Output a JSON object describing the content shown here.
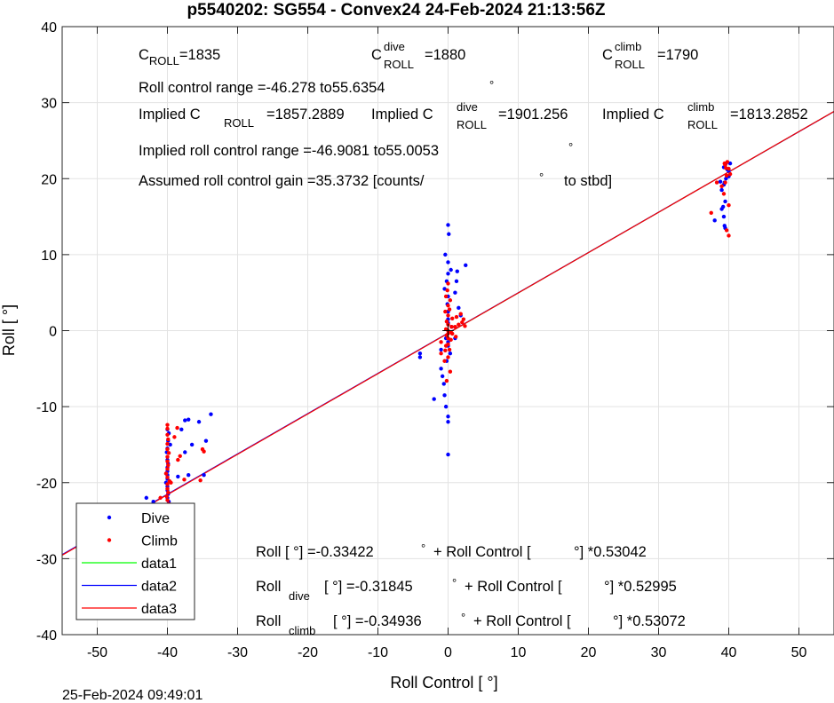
{
  "chart_data": {
    "type": "scatter",
    "title": "p5540202: SG554 - Convex24 24-Feb-2024 21:13:56Z",
    "xlabel": "Roll Control [   °]",
    "ylabel": "Roll [  °]",
    "xlim": [
      -55,
      55
    ],
    "ylim": [
      -40,
      40
    ],
    "xticks": [
      -50,
      -40,
      -30,
      -20,
      -10,
      0,
      10,
      20,
      30,
      40,
      50
    ],
    "yticks": [
      -40,
      -30,
      -20,
      -10,
      0,
      10,
      20,
      30,
      40
    ],
    "grid": true,
    "legend_position": "bottom-left",
    "timestamp": "25-Feb-2024 09:49:01",
    "series": [
      {
        "name": "Dive",
        "kind": "points",
        "color": "#0000ff",
        "points": [
          [
            -40,
            -24.5
          ],
          [
            -40,
            -24
          ],
          [
            -40,
            -23.5
          ],
          [
            -40,
            -23
          ],
          [
            -39.8,
            -22.5
          ],
          [
            -40,
            -22
          ],
          [
            -39.9,
            -21.5
          ],
          [
            -40,
            -21
          ],
          [
            -40,
            -20.5
          ],
          [
            -40.2,
            -20
          ],
          [
            -40,
            -19.5
          ],
          [
            -40,
            -19
          ],
          [
            -40,
            -18.5
          ],
          [
            -40,
            -18
          ],
          [
            -39.9,
            -17.5
          ],
          [
            -40,
            -17
          ],
          [
            -40.1,
            -16
          ],
          [
            -40,
            -15.5
          ],
          [
            -39.9,
            -14.5
          ],
          [
            -39.8,
            -13.5
          ],
          [
            -40,
            -13
          ],
          [
            -39.6,
            -15
          ],
          [
            -38,
            -13
          ],
          [
            -37.5,
            -11.8
          ],
          [
            -37,
            -11.7
          ],
          [
            -36.5,
            -15
          ],
          [
            -37.5,
            -16
          ],
          [
            -35.5,
            -12
          ],
          [
            -34.5,
            -14.5
          ],
          [
            -33.8,
            -11
          ],
          [
            -34.8,
            -19
          ],
          [
            -38.5,
            -19.2
          ],
          [
            -37,
            -19
          ],
          [
            -42,
            -22.5
          ],
          [
            -43,
            -22
          ],
          [
            -4,
            -3
          ],
          [
            -4,
            -3.5
          ],
          [
            -2,
            -9
          ],
          [
            -1,
            -2.5
          ],
          [
            -1,
            -5
          ],
          [
            -0.8,
            -6
          ],
          [
            -0.6,
            -7
          ],
          [
            -0.5,
            -8.5
          ],
          [
            -0.3,
            -10
          ],
          [
            0,
            -11.3
          ],
          [
            0,
            -12
          ],
          [
            0,
            -16.3
          ],
          [
            -0.2,
            -4
          ],
          [
            0.3,
            -3
          ],
          [
            0,
            -1.5
          ],
          [
            0,
            -2
          ],
          [
            -0.3,
            -1
          ],
          [
            0.5,
            0.5
          ],
          [
            0,
            1
          ],
          [
            0,
            1.5
          ],
          [
            0,
            2.5
          ],
          [
            -0.1,
            3.5
          ],
          [
            0,
            4.5
          ],
          [
            -0.5,
            5.5
          ],
          [
            -0.2,
            6.5
          ],
          [
            0,
            7.5
          ],
          [
            0.4,
            8
          ],
          [
            0,
            9
          ],
          [
            -0.4,
            10
          ],
          [
            0.1,
            12.7
          ],
          [
            0,
            13.9
          ],
          [
            1,
            5
          ],
          [
            1.2,
            6.5
          ],
          [
            1.3,
            7.8
          ],
          [
            2.5,
            8.6
          ],
          [
            1.5,
            3
          ],
          [
            1.8,
            2
          ],
          [
            1,
            -1
          ],
          [
            38,
            14.5
          ],
          [
            39,
            16
          ],
          [
            39.2,
            16.3
          ],
          [
            39.3,
            15
          ],
          [
            39.5,
            13.5
          ],
          [
            39.4,
            13.8
          ],
          [
            39,
            18.5
          ],
          [
            39.5,
            17
          ],
          [
            39.4,
            19.5
          ],
          [
            39.6,
            20
          ],
          [
            40,
            21
          ],
          [
            40,
            20.3
          ],
          [
            39.6,
            22
          ],
          [
            39.3,
            21.5
          ],
          [
            39.8,
            21.2
          ],
          [
            40.2,
            22
          ],
          [
            39.3,
            19.2
          ],
          [
            38.8,
            19.6
          ]
        ]
      },
      {
        "name": "Climb",
        "kind": "points",
        "color": "#ff0000",
        "points": [
          [
            -40,
            -24
          ],
          [
            -40,
            -23.3
          ],
          [
            -39.8,
            -22.8
          ],
          [
            -40,
            -22.3
          ],
          [
            -40.1,
            -21.8
          ],
          [
            -39.9,
            -21.3
          ],
          [
            -40,
            -20.8
          ],
          [
            -40,
            -20.2
          ],
          [
            -39.7,
            -19.8
          ],
          [
            -40,
            -19.3
          ],
          [
            -40.2,
            -18.8
          ],
          [
            -40,
            -18.2
          ],
          [
            -39.9,
            -17.7
          ],
          [
            -40,
            -17.2
          ],
          [
            -40,
            -16.6
          ],
          [
            -39.8,
            -16.1
          ],
          [
            -40,
            -15.6
          ],
          [
            -40,
            -14.9
          ],
          [
            -39.9,
            -14.3
          ],
          [
            -40,
            -13.7
          ],
          [
            -40,
            -12.9
          ],
          [
            -40,
            -12.4
          ],
          [
            -39.5,
            -20
          ],
          [
            -38.5,
            -17
          ],
          [
            -39,
            -14
          ],
          [
            -38.2,
            -16.5
          ],
          [
            -35,
            -15.6
          ],
          [
            -34.8,
            -15.9
          ],
          [
            -35.3,
            -19.7
          ],
          [
            -37.6,
            -19.6
          ],
          [
            -38.6,
            -12.8
          ],
          [
            -41,
            -22
          ],
          [
            -39.5,
            -23.6
          ],
          [
            -1,
            -1.5
          ],
          [
            -1,
            -3
          ],
          [
            -0.5,
            -4
          ],
          [
            0,
            -3.5
          ],
          [
            0.2,
            -2.5
          ],
          [
            -0.3,
            -2
          ],
          [
            0,
            -1.8
          ],
          [
            0.4,
            -1.2
          ],
          [
            0,
            -1
          ],
          [
            -0.2,
            -0.6
          ],
          [
            0,
            -0.4
          ],
          [
            0.4,
            -0.2
          ],
          [
            0,
            0
          ],
          [
            -0.3,
            0.2
          ],
          [
            0.5,
            0.5
          ],
          [
            0,
            0.8
          ],
          [
            -0.2,
            1.2
          ],
          [
            0.6,
            1.6
          ],
          [
            0,
            2
          ],
          [
            -0.4,
            2.5
          ],
          [
            0.2,
            2.8
          ],
          [
            0,
            3.3
          ],
          [
            0.3,
            4
          ],
          [
            -0.3,
            4.5
          ],
          [
            -0.1,
            5.3
          ],
          [
            0,
            6.2
          ],
          [
            1,
            0.5
          ],
          [
            1.5,
            0.8
          ],
          [
            2,
            1.1
          ],
          [
            2.2,
            1.5
          ],
          [
            1.2,
            1.8
          ],
          [
            1.8,
            2.2
          ],
          [
            2.4,
            0.6
          ],
          [
            0.6,
            -0.4
          ],
          [
            1.1,
            -0.8
          ],
          [
            -0.4,
            -2.6
          ],
          [
            0.3,
            -5.4
          ],
          [
            -0.2,
            -6.6
          ],
          [
            39,
            19
          ],
          [
            39.5,
            19.5
          ],
          [
            39.7,
            20.4
          ],
          [
            40,
            21.3
          ],
          [
            39.5,
            21.8
          ],
          [
            39.4,
            22
          ],
          [
            39.8,
            22.2
          ],
          [
            40,
            16.5
          ],
          [
            39.3,
            18
          ],
          [
            37.5,
            15.5
          ],
          [
            38.3,
            19.5
          ],
          [
            40,
            12.5
          ],
          [
            39.7,
            13.2
          ],
          [
            40.2,
            20.6
          ],
          [
            39.6,
            21.4
          ]
        ]
      },
      {
        "name": "data1",
        "kind": "line",
        "color": "#00ff00",
        "x": [
          -55,
          55
        ],
        "y": [
          -29.51,
          28.836
        ]
      },
      {
        "name": "data2",
        "kind": "line",
        "color": "#0000ff",
        "x": [
          -55,
          55
        ],
        "y": [
          -29.466,
          28.829
        ]
      },
      {
        "name": "data3",
        "kind": "line",
        "color": "#ff0000",
        "x": [
          -55,
          55
        ],
        "y": [
          -29.539,
          28.84
        ]
      }
    ],
    "annotations": {
      "c_roll_label": "C",
      "c_roll_sub": "ROLL",
      "c_roll_val": "=1835",
      "c_dive_label": "C",
      "c_dive_sup": "dive",
      "c_dive_sub": "ROLL",
      "c_dive_val": "=1880",
      "c_climb_label": "C",
      "c_climb_sup": "climb",
      "c_climb_sub": "ROLL",
      "c_climb_val": "=1790",
      "roll_range": "Roll control range =-46.278 to55.6354",
      "deg_mark": "°",
      "implied_c": "Implied C",
      "implied_c_sub": "ROLL",
      "implied_c_val": "=1857.2889",
      "implied_c_dive": "Implied C",
      "implied_c_dive_sup": "dive",
      "implied_c_dive_sub": "ROLL",
      "implied_c_dive_val": "=1901.256",
      "implied_c_climb": "Implied C",
      "implied_c_climb_sup": "climb",
      "implied_c_climb_sub": "ROLL",
      "implied_c_climb_val": "=1813.2852",
      "implied_range": "Implied roll control range =-46.9081 to55.0053",
      "gain_a": "Assumed roll control gain =35.3732 [counts/",
      "gain_b": "to stbd]",
      "eq1_a": "Roll [  °] =-0.33422",
      "eq1_b": "+ Roll Control [",
      "eq1_c": "°] *0.53042",
      "eq2_a": "Roll",
      "eq2_sub": "dive",
      "eq2_b": "[  °] =-0.31845",
      "eq2_c": "+ Roll Control [",
      "eq2_d": "°] *0.52995",
      "eq3_a": "Roll",
      "eq3_sub": "climb",
      "eq3_b": "[  °] =-0.34936",
      "eq3_c": "+ Roll Control [",
      "eq3_d": "°] *0.53072"
    }
  }
}
